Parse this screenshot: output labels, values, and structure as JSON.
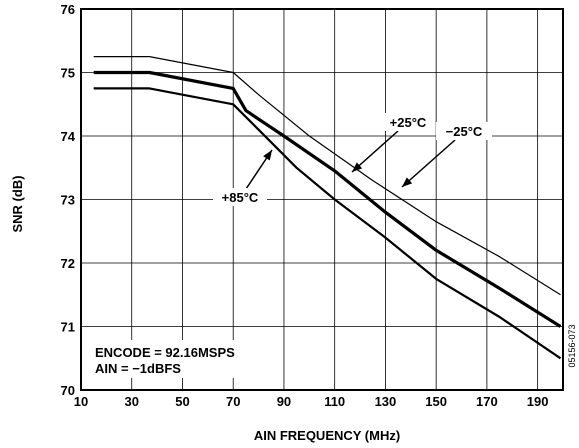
{
  "chart_data": {
    "type": "line",
    "xlabel": "AIN FREQUENCY (MHz)",
    "ylabel": "SNR (dB)",
    "xlim": [
      10,
      200
    ],
    "ylim": [
      70,
      76
    ],
    "x_ticks": [
      10,
      30,
      50,
      70,
      90,
      110,
      130,
      150,
      170,
      190
    ],
    "y_ticks": [
      70,
      71,
      72,
      73,
      74,
      75,
      76
    ],
    "grid": true,
    "series": [
      {
        "name": "−25°C",
        "style": "thin",
        "points": [
          [
            15,
            75.25
          ],
          [
            37,
            75.25
          ],
          [
            70,
            75.0
          ],
          [
            80,
            74.65
          ],
          [
            100,
            74.0
          ],
          [
            125,
            73.3
          ],
          [
            150,
            72.65
          ],
          [
            175,
            72.1
          ],
          [
            199,
            71.5
          ]
        ]
      },
      {
        "name": "+25°C",
        "style": "thick",
        "points": [
          [
            15,
            75.0
          ],
          [
            37,
            75.0
          ],
          [
            70,
            74.75
          ],
          [
            75,
            74.4
          ],
          [
            90,
            74.0
          ],
          [
            110,
            73.45
          ],
          [
            130,
            72.8
          ],
          [
            150,
            72.2
          ],
          [
            175,
            71.6
          ],
          [
            199,
            71.0
          ]
        ]
      },
      {
        "name": "+85°C",
        "style": "medium",
        "points": [
          [
            15,
            74.75
          ],
          [
            37,
            74.75
          ],
          [
            70,
            74.5
          ],
          [
            80,
            74.1
          ],
          [
            95,
            73.5
          ],
          [
            110,
            73.0
          ],
          [
            130,
            72.4
          ],
          [
            150,
            71.75
          ],
          [
            175,
            71.15
          ],
          [
            199,
            70.5
          ]
        ]
      }
    ],
    "annotations": {
      "plus25": "+25°C",
      "minus25": "−25°C",
      "plus85": "+85°C"
    },
    "notes": [
      "ENCODE = 92.16MSPS",
      "AIN = −1dBFS"
    ],
    "figure_id": "05156-073"
  }
}
